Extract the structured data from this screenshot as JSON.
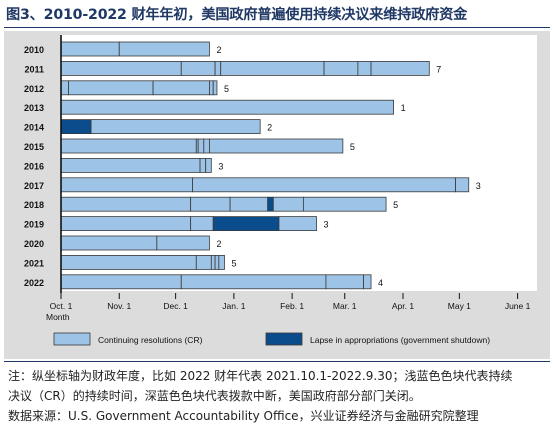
{
  "title": "图3、2010-2022 财年年初，美国政府普遍使用持续决议来维持政府资金",
  "note_lines": [
    "注：纵坐标轴为财政年度，比如 2022 财年代表 2021.10.1-2022.9.30；浅蓝色色块代表持续",
    "决议（CR）的持续时间，深蓝色色块代表拨款中断，美国政府部分部门关闭。",
    "数据来源：U.S. Government Accountability Office，兴业证券经济与金融研究院整理"
  ],
  "colors": {
    "cr": "#9dc3e6",
    "lapse": "#0b4c8c",
    "panel": "#dcdcdc",
    "title": "#1f3864"
  },
  "chart_data": {
    "type": "bar",
    "orientation": "horizontal-timeline",
    "title": "",
    "xlabel": "Month",
    "ylabel": "",
    "x_unit": "days since Oct. 1",
    "xlim": [
      0,
      248
    ],
    "x_ticks": [
      {
        "label": "Oct. 1",
        "day": 0
      },
      {
        "label": "Nov. 1",
        "day": 31
      },
      {
        "label": "Dec. 1",
        "day": 61
      },
      {
        "label": "Jan. 1",
        "day": 92
      },
      {
        "label": "Feb. 1",
        "day": 123
      },
      {
        "label": "Mar. 1",
        "day": 151
      },
      {
        "label": "Apr. 1",
        "day": 182
      },
      {
        "label": "May 1",
        "day": 212
      },
      {
        "label": "June 1",
        "day": 243
      }
    ],
    "legend": [
      {
        "key": "cr",
        "label": "Continuing resolutions (CR)"
      },
      {
        "key": "lapse",
        "label": "Lapse in appropriations (government shutdown)"
      }
    ],
    "legend_position": "bottom",
    "grid": false,
    "rows": [
      {
        "year": "2010",
        "count": 2,
        "segments": [
          {
            "type": "cr",
            "start": 0,
            "end": 31
          },
          {
            "type": "cr",
            "start": 31,
            "end": 79
          }
        ]
      },
      {
        "year": "2011",
        "count": 7,
        "segments": [
          {
            "type": "cr",
            "start": 0,
            "end": 64
          },
          {
            "type": "cr",
            "start": 64,
            "end": 82
          },
          {
            "type": "cr",
            "start": 82,
            "end": 85
          },
          {
            "type": "cr",
            "start": 85,
            "end": 140
          },
          {
            "type": "cr",
            "start": 140,
            "end": 158
          },
          {
            "type": "cr",
            "start": 158,
            "end": 165
          },
          {
            "type": "cr",
            "start": 165,
            "end": 196
          }
        ]
      },
      {
        "year": "2012",
        "count": 5,
        "segments": [
          {
            "type": "cr",
            "start": 0,
            "end": 4
          },
          {
            "type": "cr",
            "start": 4,
            "end": 49
          },
          {
            "type": "cr",
            "start": 49,
            "end": 79
          },
          {
            "type": "cr",
            "start": 79,
            "end": 81
          },
          {
            "type": "cr",
            "start": 81,
            "end": 83
          }
        ]
      },
      {
        "year": "2013",
        "count": 1,
        "segments": [
          {
            "type": "cr",
            "start": 0,
            "end": 177
          }
        ]
      },
      {
        "year": "2014",
        "count": 2,
        "segments": [
          {
            "type": "lapse",
            "start": 0,
            "end": 16
          },
          {
            "type": "cr",
            "start": 16,
            "end": 106
          }
        ]
      },
      {
        "year": "2015",
        "count": 5,
        "segments": [
          {
            "type": "cr",
            "start": 0,
            "end": 72
          },
          {
            "type": "cr",
            "start": 72,
            "end": 73
          },
          {
            "type": "cr",
            "start": 73,
            "end": 76
          },
          {
            "type": "cr",
            "start": 76,
            "end": 79
          },
          {
            "type": "cr",
            "start": 79,
            "end": 150
          }
        ]
      },
      {
        "year": "2016",
        "count": 3,
        "segments": [
          {
            "type": "cr",
            "start": 0,
            "end": 74
          },
          {
            "type": "cr",
            "start": 74,
            "end": 77
          },
          {
            "type": "cr",
            "start": 77,
            "end": 80
          }
        ]
      },
      {
        "year": "2017",
        "count": 3,
        "segments": [
          {
            "type": "cr",
            "start": 0,
            "end": 70
          },
          {
            "type": "cr",
            "start": 70,
            "end": 210
          },
          {
            "type": "cr",
            "start": 210,
            "end": 217
          }
        ]
      },
      {
        "year": "2018",
        "count": 5,
        "segments": [
          {
            "type": "cr",
            "start": 0,
            "end": 69
          },
          {
            "type": "cr",
            "start": 69,
            "end": 90
          },
          {
            "type": "cr",
            "start": 90,
            "end": 110
          },
          {
            "type": "lapse",
            "start": 110,
            "end": 113
          },
          {
            "type": "cr",
            "start": 113,
            "end": 129
          },
          {
            "type": "cr",
            "start": 129,
            "end": 173
          }
        ]
      },
      {
        "year": "2019",
        "count": 3,
        "segments": [
          {
            "type": "cr",
            "start": 0,
            "end": 69
          },
          {
            "type": "cr",
            "start": 69,
            "end": 81
          },
          {
            "type": "lapse",
            "start": 81,
            "end": 116
          },
          {
            "type": "cr",
            "start": 116,
            "end": 136
          }
        ]
      },
      {
        "year": "2020",
        "count": 2,
        "segments": [
          {
            "type": "cr",
            "start": 0,
            "end": 51
          },
          {
            "type": "cr",
            "start": 51,
            "end": 79
          }
        ]
      },
      {
        "year": "2021",
        "count": 5,
        "segments": [
          {
            "type": "cr",
            "start": 0,
            "end": 72
          },
          {
            "type": "cr",
            "start": 72,
            "end": 80
          },
          {
            "type": "cr",
            "start": 80,
            "end": 82
          },
          {
            "type": "cr",
            "start": 82,
            "end": 84
          },
          {
            "type": "cr",
            "start": 84,
            "end": 87
          }
        ]
      },
      {
        "year": "2022",
        "count": 4,
        "segments": [
          {
            "type": "cr",
            "start": 0,
            "end": 64
          },
          {
            "type": "cr",
            "start": 64,
            "end": 141
          },
          {
            "type": "cr",
            "start": 141,
            "end": 161
          },
          {
            "type": "cr",
            "start": 161,
            "end": 165
          }
        ]
      }
    ]
  }
}
